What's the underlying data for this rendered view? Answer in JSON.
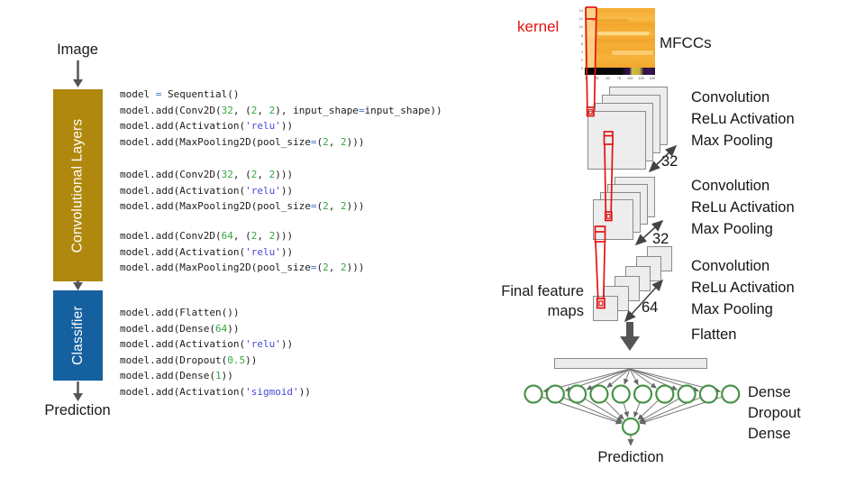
{
  "left_pipeline": {
    "input_label": "Image",
    "stages": [
      {
        "label": "Convolutional Layers",
        "color": "#B0880D"
      },
      {
        "label": "Classifier",
        "color": "#15609F"
      }
    ],
    "output_label": "Prediction"
  },
  "code": {
    "colors": {
      "plain": "#1c1c1c",
      "operator": "#3E74C9",
      "number": "#35A53F",
      "string": "#4848D8"
    },
    "blocks": [
      [
        [
          [
            "p",
            "model "
          ],
          [
            "o",
            "="
          ],
          [
            "p",
            " Sequential()"
          ]
        ],
        [
          [
            "p",
            "model.add(Conv2D("
          ],
          [
            "n",
            "32"
          ],
          [
            "p",
            ", ("
          ],
          [
            "n",
            "2"
          ],
          [
            "p",
            ", "
          ],
          [
            "n",
            "2"
          ],
          [
            "p",
            "), input_shape"
          ],
          [
            "o",
            "="
          ],
          [
            "p",
            "input_shape))"
          ]
        ],
        [
          [
            "p",
            "model.add(Activation("
          ],
          [
            "s",
            "'relu'"
          ],
          [
            "p",
            "))"
          ]
        ],
        [
          [
            "p",
            "model.add(MaxPooling2D(pool_size"
          ],
          [
            "o",
            "="
          ],
          [
            "p",
            "("
          ],
          [
            "n",
            "2"
          ],
          [
            "p",
            ", "
          ],
          [
            "n",
            "2"
          ],
          [
            "p",
            ")))"
          ]
        ]
      ],
      [
        [
          [
            "p",
            "model.add(Conv2D("
          ],
          [
            "n",
            "32"
          ],
          [
            "p",
            ", ("
          ],
          [
            "n",
            "2"
          ],
          [
            "p",
            ", "
          ],
          [
            "n",
            "2"
          ],
          [
            "p",
            ")))"
          ]
        ],
        [
          [
            "p",
            "model.add(Activation("
          ],
          [
            "s",
            "'relu'"
          ],
          [
            "p",
            "))"
          ]
        ],
        [
          [
            "p",
            "model.add(MaxPooling2D(pool_size"
          ],
          [
            "o",
            "="
          ],
          [
            "p",
            "("
          ],
          [
            "n",
            "2"
          ],
          [
            "p",
            ", "
          ],
          [
            "n",
            "2"
          ],
          [
            "p",
            ")))"
          ]
        ]
      ],
      [
        [
          [
            "p",
            "model.add(Conv2D("
          ],
          [
            "n",
            "64"
          ],
          [
            "p",
            ", ("
          ],
          [
            "n",
            "2"
          ],
          [
            "p",
            ", "
          ],
          [
            "n",
            "2"
          ],
          [
            "p",
            ")))"
          ]
        ],
        [
          [
            "p",
            "model.add(Activation("
          ],
          [
            "s",
            "'relu'"
          ],
          [
            "p",
            "))"
          ]
        ],
        [
          [
            "p",
            "model.add(MaxPooling2D(pool_size"
          ],
          [
            "o",
            "="
          ],
          [
            "p",
            "("
          ],
          [
            "n",
            "2"
          ],
          [
            "p",
            ", "
          ],
          [
            "n",
            "2"
          ],
          [
            "p",
            ")))"
          ]
        ]
      ],
      [
        [
          [
            "p",
            "model.add(Flatten())"
          ]
        ],
        [
          [
            "p",
            "model.add(Dense("
          ],
          [
            "n",
            "64"
          ],
          [
            "p",
            "))"
          ]
        ],
        [
          [
            "p",
            "model.add(Activation("
          ],
          [
            "s",
            "'relu'"
          ],
          [
            "p",
            "))"
          ]
        ],
        [
          [
            "p",
            "model.add(Dropout("
          ],
          [
            "n",
            "0.5"
          ],
          [
            "p",
            "))"
          ]
        ],
        [
          [
            "p",
            "model.add(Dense("
          ],
          [
            "n",
            "1"
          ],
          [
            "p",
            "))"
          ]
        ],
        [
          [
            "p",
            "model.add(Activation("
          ],
          [
            "s",
            "'sigmoid'"
          ],
          [
            "p",
            "))"
          ]
        ]
      ]
    ]
  },
  "right_diagram": {
    "kernel_label": "kernel",
    "kernel_color": "#E31212",
    "mfcc_label": "MFCCs",
    "mfcc_x_ticks": [
      "0",
      "25",
      "50",
      "75",
      "100",
      "125",
      "150"
    ],
    "mfcc_y_ticks": [
      "14",
      "12",
      "10",
      "8",
      "6",
      "4",
      "2",
      "0"
    ],
    "conv_stages": [
      {
        "lines": [
          "Convolution",
          "ReLu Activation",
          "Max Pooling"
        ],
        "count": "32"
      },
      {
        "lines": [
          "Convolution",
          "ReLu Activation",
          "Max Pooling"
        ],
        "count": "32"
      },
      {
        "lines": [
          "Convolution",
          "ReLu Activation",
          "Max Pooling"
        ],
        "count": "64"
      }
    ],
    "flatten_label": "Flatten",
    "final_maps_label": [
      "Final feature",
      "maps"
    ],
    "dense_labels": [
      "Dense",
      "Dropout",
      "Dense"
    ],
    "prediction_label": "Prediction",
    "hidden_units": 10,
    "output_units": 1,
    "neuron_color": "#479347",
    "arrow_color": "#555555"
  }
}
